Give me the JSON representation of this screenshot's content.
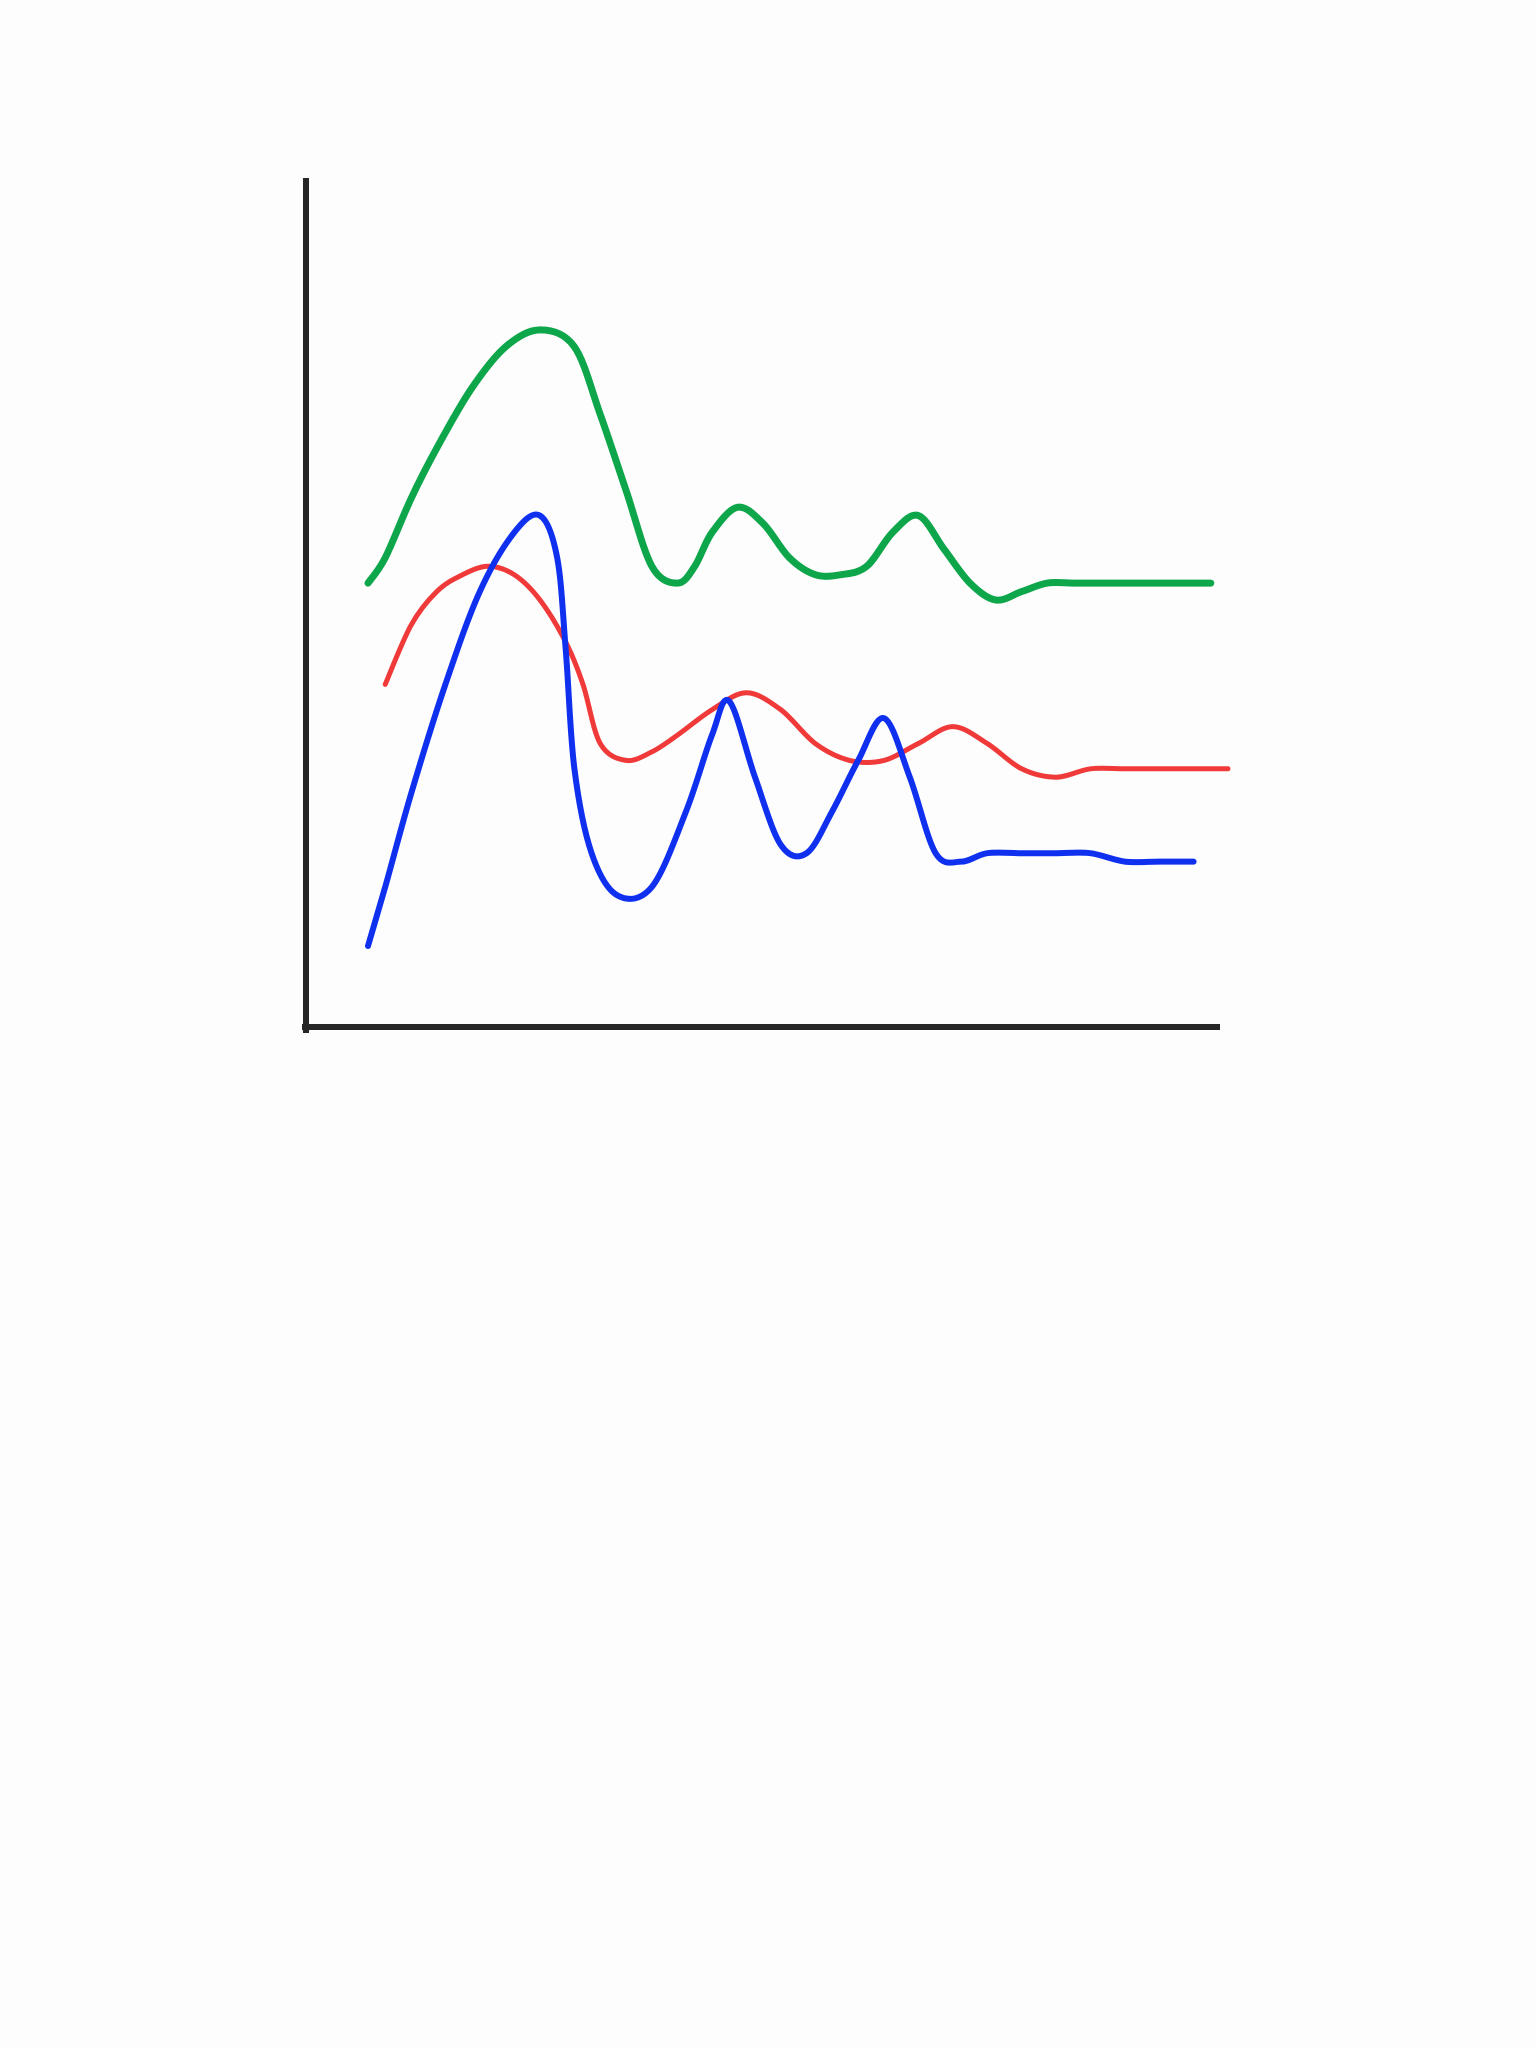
{
  "chart_data": {
    "type": "line",
    "title": "",
    "xlabel": "",
    "ylabel": "",
    "xlim": [
      0,
      100
    ],
    "ylim": [
      0,
      100
    ],
    "grid": false,
    "legend": "none",
    "series": [
      {
        "color": "#0ea64a",
        "x": [
          0,
          2,
          5,
          8,
          12,
          16,
          20,
          24,
          27,
          30,
          33,
          36,
          38,
          40,
          43,
          46,
          49,
          52,
          55,
          58,
          61,
          64,
          67,
          70,
          73,
          76,
          79,
          82,
          85,
          88,
          91,
          94,
          96,
          98
        ],
        "y": [
          52,
          55,
          62,
          68,
          75,
          80,
          82,
          80,
          72,
          63,
          54,
          52,
          54,
          58,
          61,
          59,
          55,
          53,
          53,
          54,
          58,
          60,
          56,
          52,
          50,
          51,
          52,
          52,
          52,
          52,
          52,
          52,
          52,
          52
        ]
      },
      {
        "color": "#f03a3a",
        "x": [
          2,
          5,
          8,
          11,
          14,
          17,
          20,
          23,
          25,
          27,
          30,
          33,
          36,
          40,
          44,
          48,
          52,
          56,
          60,
          64,
          68,
          72,
          76,
          80,
          84,
          88,
          92,
          96,
          100
        ],
        "y": [
          40,
          47,
          51,
          53,
          54,
          53,
          50,
          45,
          40,
          33,
          31,
          32,
          34,
          37,
          39,
          37,
          33,
          31,
          31,
          33,
          35,
          33,
          30,
          29,
          30,
          30,
          30,
          30,
          30
        ]
      },
      {
        "color": "#1030f0",
        "x": [
          0,
          2,
          5,
          9,
          13,
          17,
          20,
          22,
          23,
          24,
          26,
          29,
          33,
          37,
          40,
          42,
          45,
          48,
          51,
          54,
          57,
          60,
          63,
          66,
          69,
          72,
          76,
          80,
          84,
          88,
          92,
          96
        ],
        "y": [
          9,
          16,
          27,
          40,
          51,
          58,
          60,
          55,
          44,
          30,
          20,
          15,
          16,
          25,
          34,
          38,
          29,
          21,
          20,
          25,
          31,
          36,
          29,
          20,
          19,
          20,
          20,
          20,
          20,
          19,
          19,
          19
        ]
      }
    ]
  }
}
